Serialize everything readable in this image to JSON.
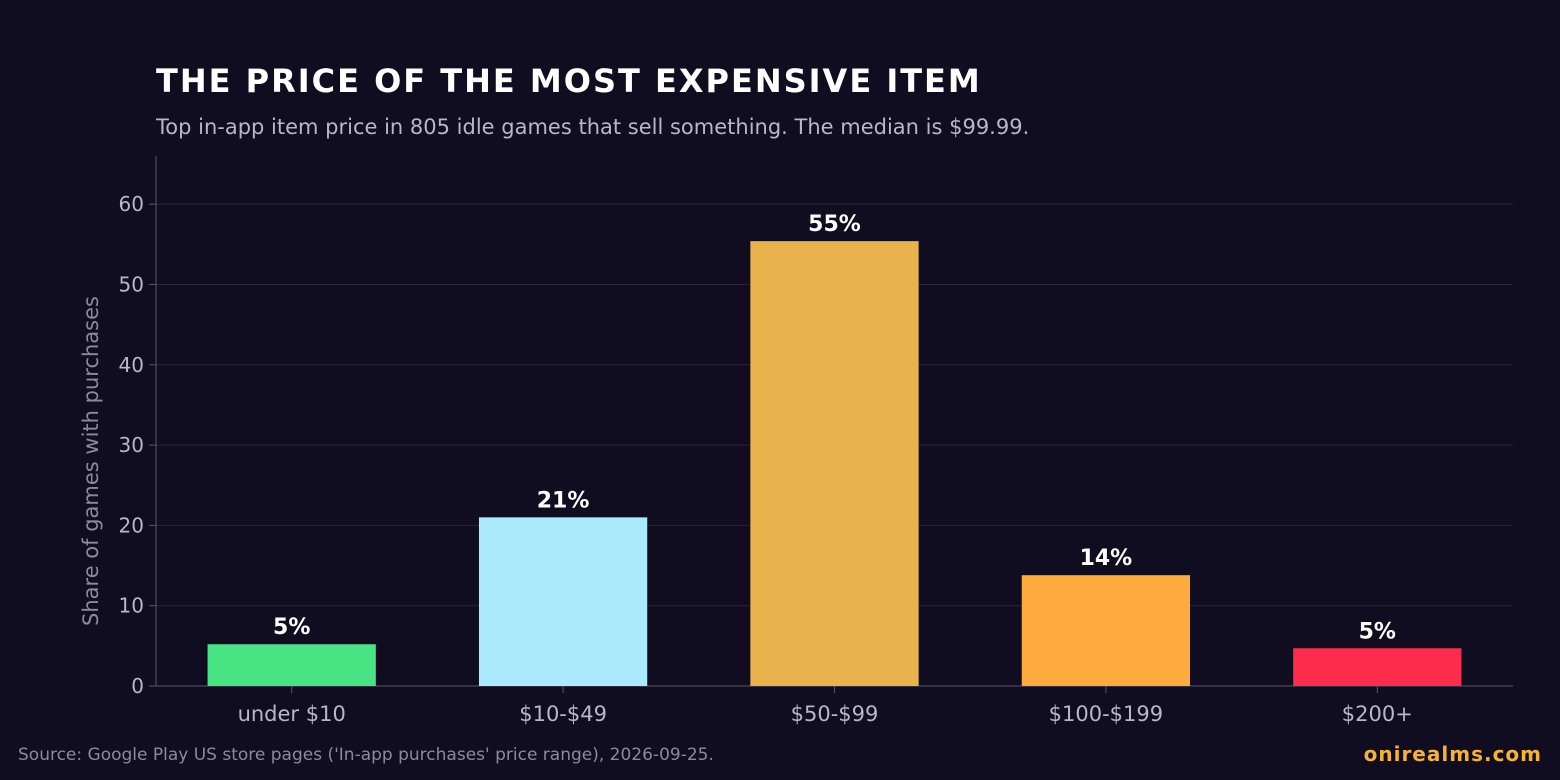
{
  "chart_data": {
    "type": "bar",
    "title": "THE PRICE OF THE MOST EXPENSIVE ITEM",
    "subtitle": "Top in-app item price in 805 idle games that sell something. The median is $99.99.",
    "xlabel": "",
    "ylabel": "Share of games with purchases",
    "categories": [
      "under $10",
      "$10-$49",
      "$50-$99",
      "$100-$199",
      "$200+"
    ],
    "values": [
      5.2,
      21.0,
      55.4,
      13.8,
      4.7
    ],
    "data_labels": [
      "5%",
      "21%",
      "55%",
      "14%",
      "5%"
    ],
    "colors": [
      "#48e484",
      "#aaeafc",
      "#e8b24c",
      "#fdaa3e",
      "#fe2c4c"
    ],
    "ylim": [
      0,
      66
    ],
    "yticks": [
      0,
      10,
      20,
      30,
      40,
      50,
      60
    ],
    "grid": true,
    "legend": "none"
  },
  "footer": {
    "source": "Source: Google Play US store pages ('In-app purchases' price range), 2026-09-25.",
    "brand": "onirealms.com",
    "brand_color": "#f5b335"
  },
  "theme": {
    "background": "#110d20",
    "grid_color": "#2a2638",
    "axis_color": "#5a5668",
    "tick_text_color": "#b9b6c8"
  }
}
